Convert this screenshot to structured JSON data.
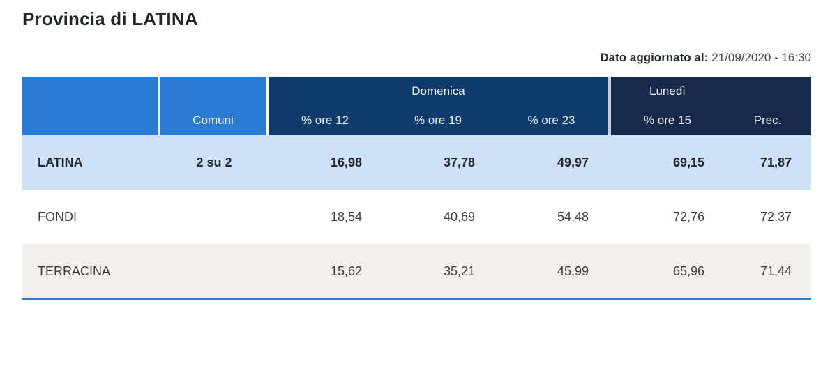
{
  "title": "Provincia di LATINA",
  "updated": {
    "label": "Dato aggiornato al:",
    "value": "21/09/2020 - 16:30"
  },
  "table": {
    "columns": {
      "comuni": "Comuni"
    },
    "groups": [
      {
        "label": "Domenica",
        "cols": [
          "% ore 12",
          "% ore 19",
          "% ore 23"
        ]
      },
      {
        "label": "Lunedì",
        "cols": [
          "% ore 15",
          "Prec."
        ]
      }
    ],
    "rows": [
      {
        "name": "LATINA",
        "comuni": "2 su 2",
        "values": [
          "16,98",
          "37,78",
          "49,97",
          "69,15",
          "71,87"
        ]
      },
      {
        "name": "FONDI",
        "comuni": "",
        "values": [
          "18,54",
          "40,69",
          "54,48",
          "72,76",
          "72,37"
        ]
      },
      {
        "name": "TERRACINA",
        "comuni": "",
        "values": [
          "15,62",
          "35,21",
          "45,99",
          "65,96",
          "71,44"
        ]
      }
    ]
  },
  "colors": {
    "header_blue": "#2b7ad3",
    "domenica_navy": "#0e3a6c",
    "lunedi_navy": "#16294b",
    "highlight_row_blue": "#cfe1f6",
    "alt_row_gray": "#f3f1ee",
    "accent_line_blue": "#2e7cd4"
  }
}
